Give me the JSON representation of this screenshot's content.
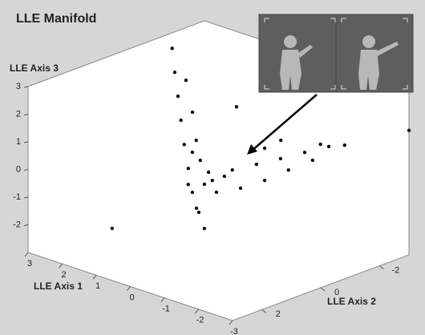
{
  "chart_data": {
    "type": "scatter3d",
    "title": "LLE Manifold",
    "x_label": "LLE Axis 1",
    "y_label": "LLE Axis 2",
    "z_label": "LLE Axis 3",
    "xlim": [
      -3,
      3
    ],
    "xticks": [
      -3,
      -2,
      -1,
      0,
      1,
      2,
      3
    ],
    "ylim": [
      -3,
      3
    ],
    "yticks": [
      -2,
      0,
      2
    ],
    "zlim": [
      -3,
      3
    ],
    "zticks": [
      -2,
      -1,
      0,
      1,
      2,
      3
    ],
    "color": "#111111",
    "x": [
      3,
      3,
      3,
      3,
      3,
      3,
      0,
      0,
      0,
      3,
      3,
      2,
      0,
      0,
      0,
      0,
      0,
      -1,
      -1.5,
      -1,
      -1,
      -1,
      -1,
      -1,
      -1,
      0,
      0,
      0,
      0,
      0,
      0,
      1,
      2,
      2,
      -3,
      -1,
      -1
    ],
    "y": [
      -1.9,
      -1.99,
      -2.1,
      -2.2,
      -2.31,
      -2.45,
      0.89,
      0.67,
      0.48,
      -2.37,
      -2.59,
      -1.56,
      0.34,
      -0.47,
      -1.29,
      -2.11,
      -2.93,
      -2.59,
      -2.55,
      -2.31,
      1.23,
      0.41,
      -0.41,
      -1.22,
      -2.04,
      0.62,
      0.48,
      0.75,
      0.21,
      -0.2,
      1.03,
      -0.27,
      1.3,
      -2.93,
      -3,
      -0.96,
      -0.41
    ],
    "z": [
      2.44,
      1.54,
      0.63,
      -0.28,
      -1.2,
      -2.12,
      -0.43,
      -1.24,
      -1.9,
      1.1,
      -0.14,
      -0.34,
      0.08,
      -0.16,
      -0.28,
      -0.4,
      -0.5,
      0.26,
      0.53,
      0.45,
      0.12,
      -0.06,
      -0.1,
      -0.05,
      -0.02,
      0.62,
      -0.3,
      -1.06,
      -0.27,
      -0.28,
      -0.09,
      0.15,
      -2.39,
      0.33,
      1.5,
      1.13,
      1.06
    ]
  }
}
